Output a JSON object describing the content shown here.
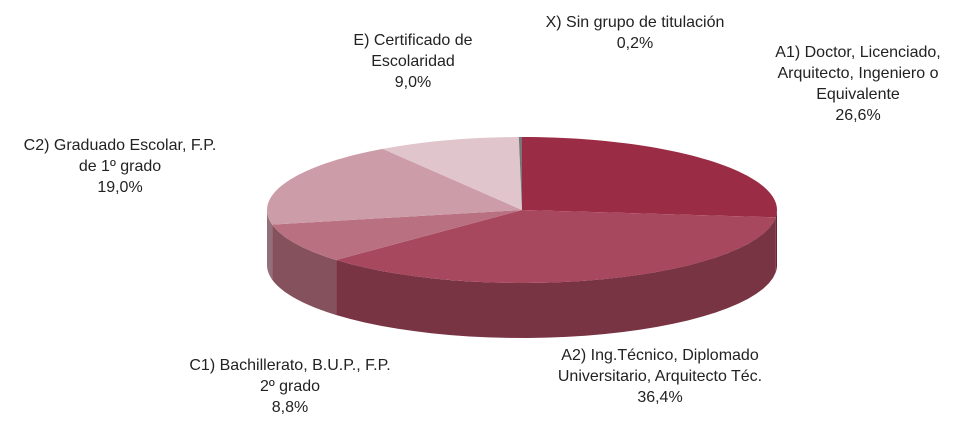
{
  "chart_data": {
    "type": "pie3d",
    "categories": [
      "A1) Doctor, Licenciado, Arquitecto, Ingeniero o Equivalente",
      "A2) Ing.Técnico, Diplomado Universitario, Arquitecto Téc.",
      "C1) Bachillerato, B.U.P., F.P. 2º grado",
      "C2) Graduado Escolar, F.P. de 1º grado",
      "E) Certificado de Escolaridad",
      "X) Sin grupo de titulación"
    ],
    "values": [
      26.6,
      36.4,
      8.8,
      19.0,
      9.0,
      0.2
    ],
    "value_labels": [
      "26,6%",
      "36,4%",
      "8,8%",
      "19,0%",
      "9,0%",
      "0,2%"
    ],
    "colors": [
      "#9b2c45",
      "#a8485f",
      "#b97081",
      "#cc9ca8",
      "#e0c6cc",
      "#777777"
    ]
  }
}
